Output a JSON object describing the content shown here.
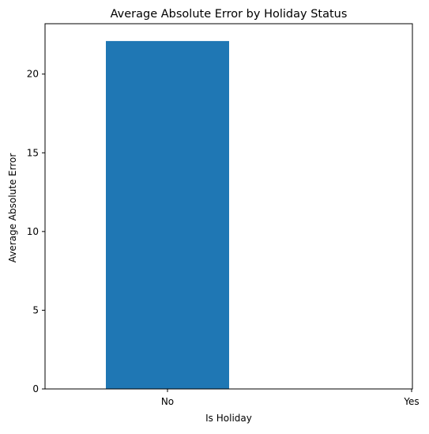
{
  "chart_data": {
    "type": "bar",
    "title": "Average Absolute Error by Holiday Status",
    "xlabel": "Is Holiday",
    "ylabel": "Average Absolute Error",
    "categories": [
      "No",
      "Yes"
    ],
    "values": [
      22.1,
      null
    ],
    "ylim": [
      0,
      23.2
    ],
    "yticks": [
      0,
      5,
      10,
      15,
      20
    ],
    "grid": false,
    "legend": "none",
    "bar_color": "#1f77b4"
  }
}
